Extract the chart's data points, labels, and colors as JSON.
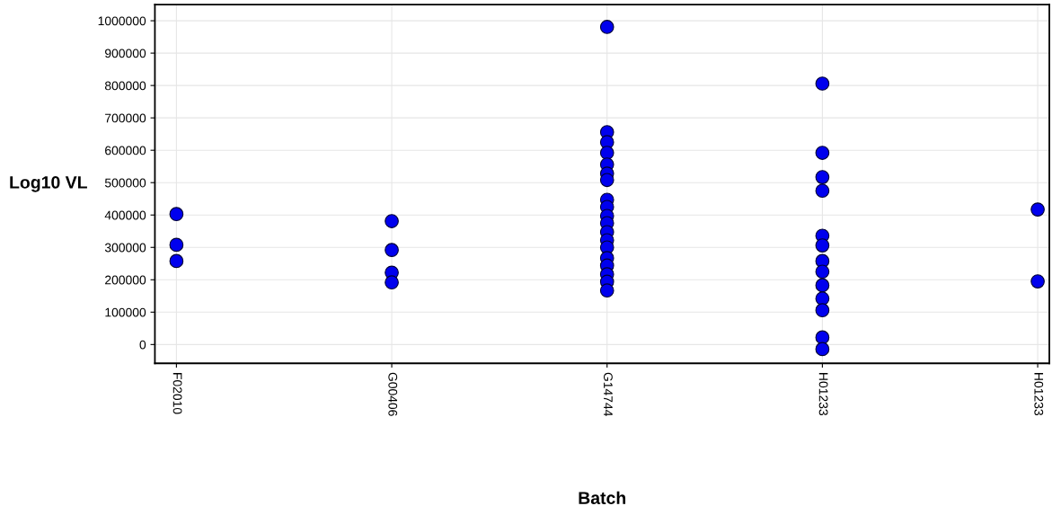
{
  "chart_data": {
    "type": "scatter",
    "xlabel": "Batch",
    "ylabel": "Log10 VL",
    "categories": [
      "F02010",
      "G00406",
      "G14744",
      "H01233",
      "H01233"
    ],
    "series": [
      {
        "color": "#0000ee",
        "values": [
          403000,
          381000,
          981000,
          806000,
          417000
        ]
      },
      {
        "color": "#0000ee",
        "values": [
          308000,
          292000,
          656000,
          592000,
          195000
        ]
      },
      {
        "color": "#0000ee",
        "values": [
          258000,
          222000,
          625000,
          517000,
          null
        ]
      },
      {
        "color": "#0000ee",
        "values": [
          null,
          192000,
          592000,
          475000,
          null
        ]
      },
      {
        "color": "#0000ee",
        "values": [
          null,
          null,
          556000,
          336000,
          null
        ]
      },
      {
        "color": "#0000ee",
        "values": [
          null,
          null,
          528000,
          306000,
          null
        ]
      },
      {
        "color": "#0000ee",
        "values": [
          null,
          null,
          508000,
          258000,
          null
        ]
      },
      {
        "color": "#0000ee",
        "values": [
          null,
          null,
          447000,
          225000,
          null
        ]
      },
      {
        "color": "#0000ee",
        "values": [
          null,
          null,
          425000,
          183000,
          null
        ]
      },
      {
        "color": "#0000ee",
        "values": [
          null,
          null,
          397000,
          142000,
          null
        ]
      },
      {
        "color": "#0000ee",
        "values": [
          null,
          null,
          375000,
          106000,
          null
        ]
      },
      {
        "color": "#0000ee",
        "values": [
          null,
          null,
          347000,
          22000,
          null
        ]
      },
      {
        "color": "#0000ee",
        "values": [
          null,
          null,
          322000,
          -14000,
          null
        ]
      },
      {
        "color": "#0000ee",
        "values": [
          null,
          null,
          300000,
          null,
          null
        ]
      },
      {
        "color": "#0000ee",
        "values": [
          null,
          null,
          267000,
          null,
          null
        ]
      },
      {
        "color": "#0000ee",
        "values": [
          null,
          null,
          244000,
          null,
          null
        ]
      },
      {
        "color": "#0000ee",
        "values": [
          null,
          null,
          217000,
          null,
          null
        ]
      },
      {
        "color": "#0000ee",
        "values": [
          null,
          null,
          194000,
          null,
          null
        ]
      },
      {
        "color": "#0000ee",
        "values": [
          null,
          null,
          167000,
          null,
          null
        ]
      }
    ],
    "ylim": [
      -58000,
      1050000
    ],
    "yticks": [
      0,
      100000,
      200000,
      300000,
      400000,
      500000,
      600000,
      700000,
      800000,
      900000,
      1000000
    ],
    "grid": true,
    "marker": "circle"
  }
}
